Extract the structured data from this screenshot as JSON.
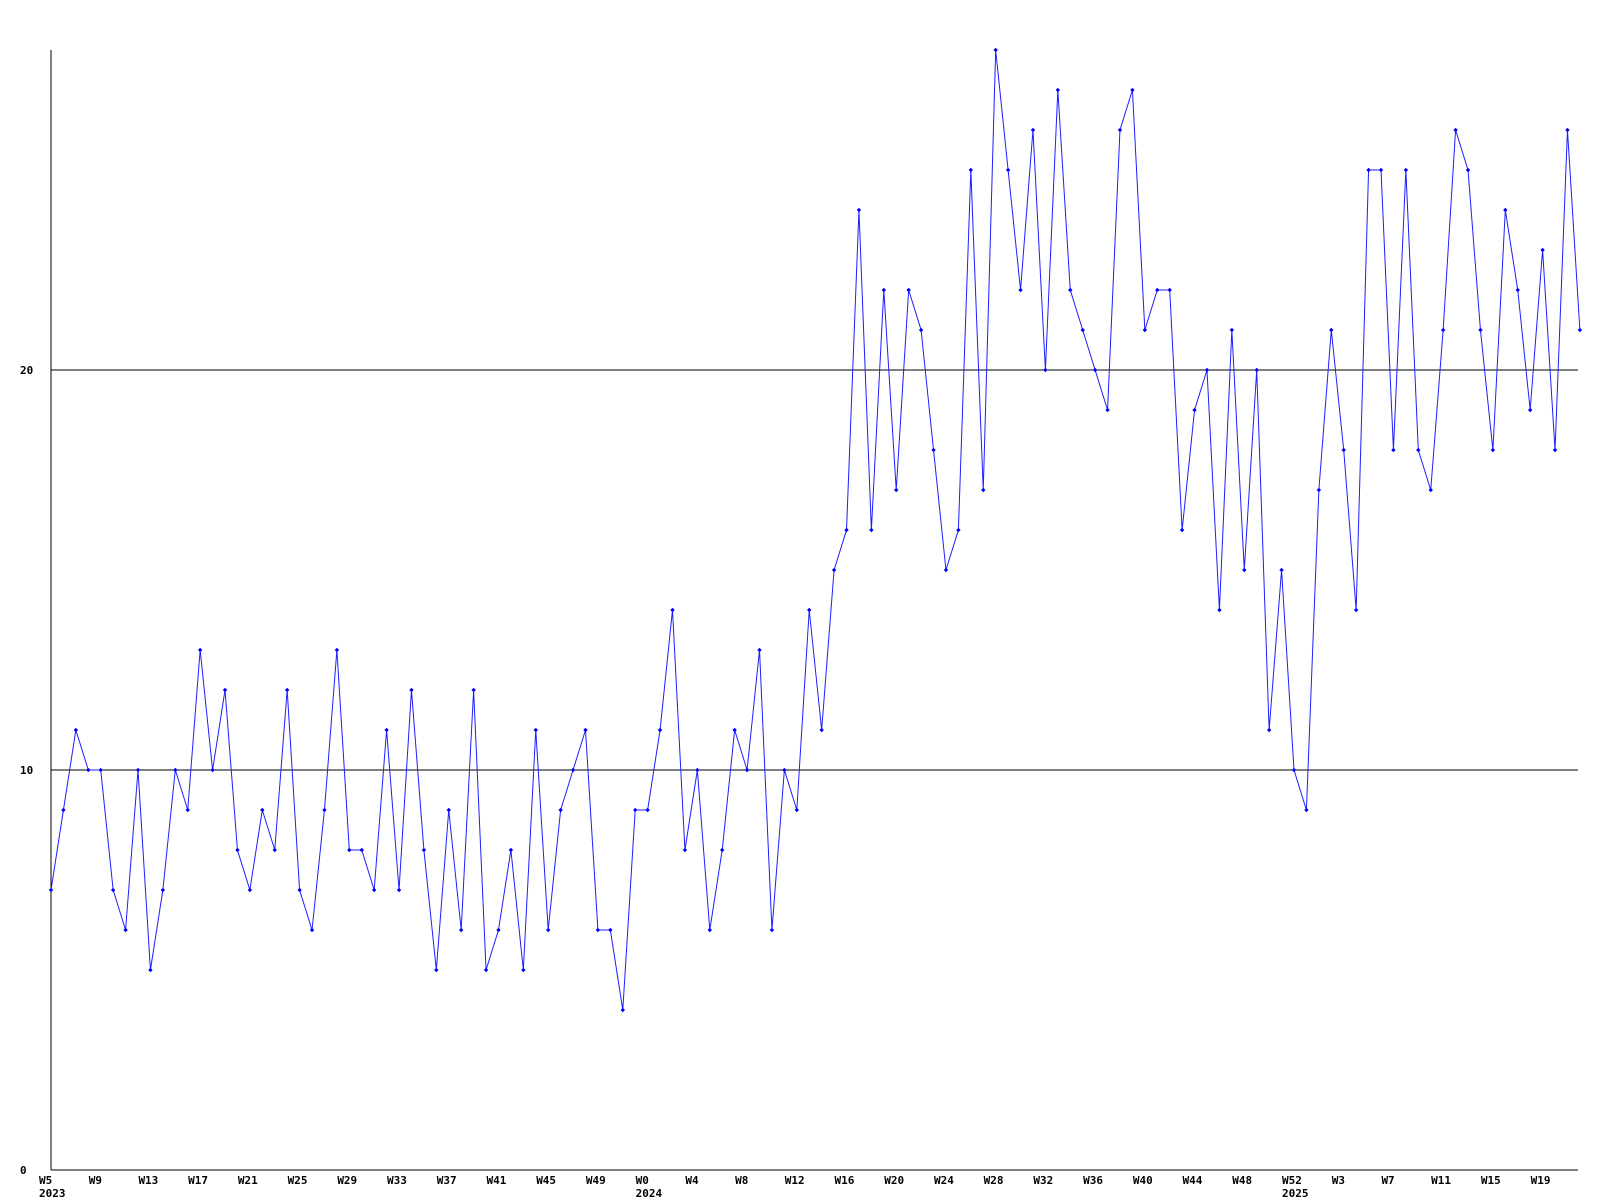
{
  "chart_data": {
    "type": "line",
    "title": "",
    "xlabel": "",
    "ylabel": "",
    "ylim": [
      0,
      28
    ],
    "y_ticks": [
      0,
      10,
      20
    ],
    "gridlines_y": [
      10,
      20
    ],
    "grid": "horizontal at labeled ticks",
    "legend": "none",
    "x_tick_labels": [
      "W5",
      "W9",
      "W13",
      "W17",
      "W21",
      "W25",
      "W29",
      "W33",
      "W37",
      "W41",
      "W45",
      "W49",
      "W0",
      "W4",
      "W8",
      "W12",
      "W16",
      "W20",
      "W24",
      "W28",
      "W32",
      "W36",
      "W40",
      "W44",
      "W48",
      "W52",
      "W3",
      "W7",
      "W11",
      "W15",
      "W19"
    ],
    "year_labels": [
      {
        "label": "2023",
        "under_tick": "W5"
      },
      {
        "label": "2024",
        "under_tick": "W0"
      },
      {
        "label": "2025",
        "under_tick": "W52"
      }
    ],
    "series": [
      {
        "values": [
          7,
          9,
          11,
          10,
          10,
          7,
          6,
          10,
          5,
          7,
          10,
          9,
          13,
          10,
          12,
          8,
          7,
          9,
          8,
          12,
          7,
          6,
          9,
          13,
          8,
          8,
          7,
          11,
          7,
          12,
          8,
          5,
          9,
          6,
          12,
          5,
          6,
          8,
          5,
          11,
          6,
          9,
          10,
          11,
          6,
          6,
          4,
          9,
          9,
          11,
          14,
          8,
          10,
          6,
          8,
          11,
          10,
          13,
          6,
          10,
          9,
          14,
          11,
          15,
          16,
          24,
          16,
          22,
          17,
          22,
          21,
          18,
          15,
          16,
          25,
          17,
          28,
          25,
          22,
          26,
          20,
          27,
          22,
          21,
          20,
          19,
          26,
          27,
          21,
          22,
          22,
          16,
          19,
          20,
          14,
          21,
          15,
          20,
          11,
          15,
          10,
          9,
          17,
          21,
          18,
          14,
          25,
          25,
          18,
          25,
          18,
          17,
          21,
          26,
          25,
          21,
          18,
          24,
          22,
          19,
          23,
          18,
          26,
          21
        ]
      }
    ],
    "colors": {
      "line": "#1e1eff",
      "markers": "#0000ff",
      "axis": "#000000",
      "gridlines": "#000000",
      "background": "#ffffff"
    }
  }
}
